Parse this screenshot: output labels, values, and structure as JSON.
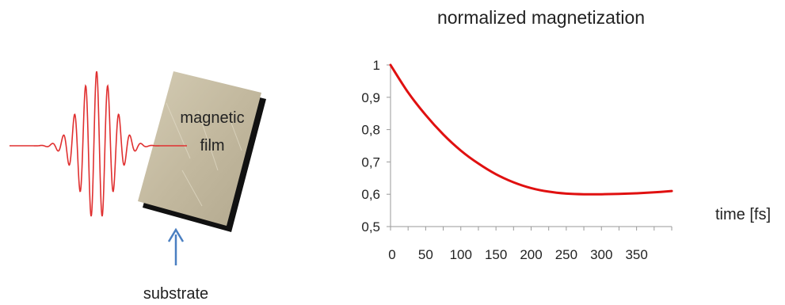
{
  "left_diagram": {
    "film_label_line1": "magnetic",
    "film_label_line2": "film",
    "substrate_label": "substrate",
    "pulse_color": "#e03030",
    "arrow_color": "#4a7fc1",
    "film_color": "#c8bfa6",
    "substrate_color": "#111111"
  },
  "chart_data": {
    "type": "line",
    "title": "normalized magnetization",
    "xlabel": "time [fs]",
    "ylabel": "",
    "xlim": [
      0,
      400
    ],
    "ylim": [
      0.5,
      1.0
    ],
    "x_ticks": [
      0,
      50,
      100,
      150,
      200,
      250,
      300,
      350
    ],
    "x_tick_labels": [
      "0",
      "50",
      "100",
      "150",
      "200",
      "250",
      "300",
      "350"
    ],
    "y_ticks": [
      0.5,
      0.6,
      0.7,
      0.8,
      0.9,
      1.0
    ],
    "y_tick_labels": [
      "0,5",
      "0,6",
      "0,7",
      "0,8",
      "0,9",
      "1"
    ],
    "grid": false,
    "series": [
      {
        "color": "#e01010",
        "x": [
          0,
          25,
          50,
          75,
          100,
          125,
          150,
          175,
          200,
          225,
          250,
          275,
          300,
          325,
          350,
          375,
          400
        ],
        "values": [
          1.0,
          0.915,
          0.845,
          0.785,
          0.735,
          0.695,
          0.662,
          0.637,
          0.619,
          0.608,
          0.602,
          0.6,
          0.6,
          0.601,
          0.603,
          0.606,
          0.61
        ]
      }
    ]
  }
}
